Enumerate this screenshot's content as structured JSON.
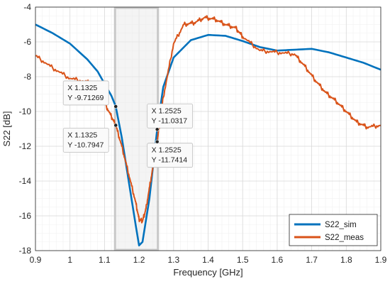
{
  "chart_data": {
    "type": "line",
    "xlabel": "Frequency [GHz]",
    "ylabel": "S22 [dB]",
    "xlim": [
      0.9,
      1.9
    ],
    "ylim": [
      -18,
      -4
    ],
    "x_ticks": [
      "0.9",
      "1",
      "1.1",
      "1.2",
      "1.3",
      "1.4",
      "1.5",
      "1.6",
      "1.7",
      "1.8",
      "1.9"
    ],
    "y_ticks": [
      "-4",
      "-6",
      "-8",
      "-10",
      "-12",
      "-14",
      "-16",
      "-18"
    ],
    "grid": true,
    "minor_grid": true,
    "legend_position": "bottom-right",
    "highlight_band": [
      1.1325,
      1.2525
    ],
    "series": [
      {
        "name": "S22_sim",
        "color": "#0072BD",
        "x": [
          0.9,
          0.95,
          1.0,
          1.05,
          1.08,
          1.1,
          1.12,
          1.1325,
          1.15,
          1.17,
          1.19,
          1.2,
          1.21,
          1.23,
          1.2525,
          1.27,
          1.3,
          1.35,
          1.4,
          1.45,
          1.5,
          1.55,
          1.6,
          1.65,
          1.7,
          1.75,
          1.8,
          1.85,
          1.9
        ],
        "y": [
          -5.0,
          -5.5,
          -6.1,
          -7.0,
          -7.7,
          -8.4,
          -9.1,
          -9.71,
          -11.5,
          -14.0,
          -16.5,
          -17.7,
          -17.5,
          -15.0,
          -11.03,
          -8.6,
          -6.9,
          -5.9,
          -5.6,
          -5.65,
          -5.95,
          -6.3,
          -6.5,
          -6.45,
          -6.4,
          -6.6,
          -6.9,
          -7.2,
          -7.6
        ]
      },
      {
        "name": "S22_meas",
        "color": "#D95319",
        "x": [
          0.9,
          0.95,
          1.0,
          1.05,
          1.08,
          1.1,
          1.12,
          1.1325,
          1.15,
          1.17,
          1.19,
          1.2,
          1.21,
          1.22,
          1.235,
          1.2525,
          1.27,
          1.3,
          1.33,
          1.36,
          1.39,
          1.42,
          1.45,
          1.48,
          1.5,
          1.55,
          1.6,
          1.65,
          1.68,
          1.71,
          1.74,
          1.77,
          1.8,
          1.83,
          1.86,
          1.9
        ],
        "y": [
          -6.8,
          -7.5,
          -8.1,
          -8.3,
          -8.6,
          -9.5,
          -10.3,
          -10.79,
          -12.0,
          -13.6,
          -15.2,
          -16.2,
          -16.3,
          -15.6,
          -13.8,
          -11.74,
          -9.2,
          -6.1,
          -5.0,
          -4.9,
          -4.6,
          -4.7,
          -5.0,
          -5.2,
          -5.7,
          -6.5,
          -6.6,
          -6.7,
          -7.4,
          -8.2,
          -8.9,
          -9.4,
          -10.0,
          -10.6,
          -10.9,
          -10.8
        ]
      }
    ],
    "datatips": [
      {
        "x_label": "X 1.1325",
        "y_label": "Y -9.71269",
        "x": 1.1325,
        "y": -9.71269,
        "side": "left"
      },
      {
        "x_label": "X 1.1325",
        "y_label": "Y -10.7947",
        "x": 1.1325,
        "y": -10.7947,
        "side": "left"
      },
      {
        "x_label": "X 1.2525",
        "y_label": "Y -11.0317",
        "x": 1.2525,
        "y": -11.0317,
        "side": "right"
      },
      {
        "x_label": "X 1.2525",
        "y_label": "Y -11.7414",
        "x": 1.2525,
        "y": -11.7414,
        "side": "right"
      }
    ]
  }
}
